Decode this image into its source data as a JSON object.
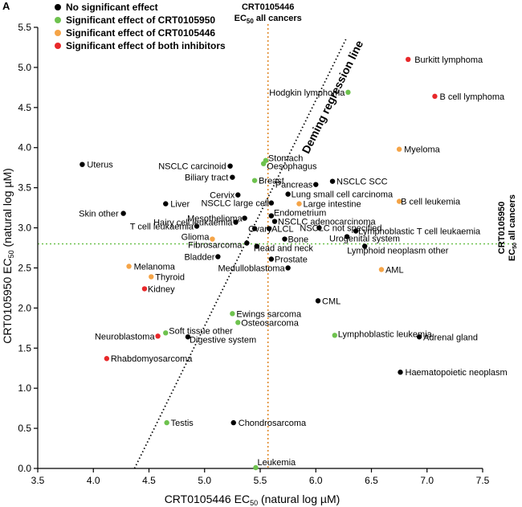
{
  "panel_label": "A",
  "chart_data": {
    "type": "scatter",
    "title": "",
    "xlabel": "CRT0105446 EC50 (natural log µM)",
    "ylabel": "CRT0105950 EC50 (natural log µM)",
    "xlim": [
      3.5,
      7.5
    ],
    "ylim": [
      0.0,
      5.5
    ],
    "xticks": [
      "3.5",
      "4.0",
      "4.5",
      "5.0",
      "5.5",
      "6.0",
      "6.5",
      "7.0",
      "7.5"
    ],
    "yticks": [
      "0.0",
      "0.5",
      "1.0",
      "1.5",
      "2.0",
      "2.5",
      "3.0",
      "3.5",
      "4.0",
      "4.5",
      "5.0",
      "5.5"
    ],
    "legend": {
      "position": "top-left",
      "entries": [
        {
          "key": "none",
          "label": "No significant effect",
          "color": "#000000"
        },
        {
          "key": "green",
          "label": "Significant effect of CRT0105950",
          "color": "#6ec24e"
        },
        {
          "key": "orange",
          "label": "Significant effect of CRT0105446",
          "color": "#f5a447"
        },
        {
          "key": "red",
          "label": "Significant effect of both inhibitors",
          "color": "#e8282a"
        }
      ]
    },
    "reference_lines": {
      "vertical": {
        "x": 5.57,
        "color": "#e08a2a",
        "line1": "CRT0105446",
        "line2_main": "EC",
        "line2_sub": "50",
        "line2_rest": " all cancers"
      },
      "horizontal": {
        "y": 2.8,
        "color": "#6ec24e",
        "line1": "CRT0105950",
        "line2_main": "EC",
        "line2_sub": "50",
        "line2_rest": " all cancers"
      }
    },
    "regression": {
      "label": "Deming regression line",
      "x1": 4.37,
      "y1": 0.0,
      "x2": 6.27,
      "y2": 5.35
    },
    "points": [
      {
        "name": "Burkitt lymphoma",
        "x": 6.83,
        "y": 5.1,
        "group": "red"
      },
      {
        "name": "B cell lymphoma",
        "x": 7.07,
        "y": 4.64,
        "group": "red"
      },
      {
        "name": "Hodgkin lymphoma",
        "x": 6.29,
        "y": 4.69,
        "group": "green"
      },
      {
        "name": "Myeloma",
        "x": 6.75,
        "y": 3.98,
        "group": "orange"
      },
      {
        "name": "Uterus",
        "x": 3.9,
        "y": 3.79,
        "group": "none"
      },
      {
        "name": "NSCLC carcinoid",
        "x": 5.23,
        "y": 3.77,
        "group": "none"
      },
      {
        "name": "Stomach",
        "x": 5.55,
        "y": 3.84,
        "group": "green"
      },
      {
        "name": "Oesophagus",
        "x": 5.53,
        "y": 3.8,
        "group": "green"
      },
      {
        "name": "Biliary tract",
        "x": 5.25,
        "y": 3.63,
        "group": "none"
      },
      {
        "name": "Breast",
        "x": 5.45,
        "y": 3.59,
        "group": "green"
      },
      {
        "name": "NSCLC SCC",
        "x": 6.15,
        "y": 3.58,
        "group": "none"
      },
      {
        "name": "Pancreas",
        "x": 6.0,
        "y": 3.54,
        "group": "none"
      },
      {
        "name": "Cervix",
        "x": 5.3,
        "y": 3.41,
        "group": "none"
      },
      {
        "name": "Lung small cell carcinoma",
        "x": 5.75,
        "y": 3.42,
        "group": "none"
      },
      {
        "name": "NSCLC large cell",
        "x": 5.6,
        "y": 3.31,
        "group": "none"
      },
      {
        "name": "Large intestine",
        "x": 5.85,
        "y": 3.3,
        "group": "orange"
      },
      {
        "name": "B cell leukemia",
        "x": 6.75,
        "y": 3.33,
        "group": "orange"
      },
      {
        "name": "Liver",
        "x": 4.65,
        "y": 3.3,
        "group": "none"
      },
      {
        "name": "Skin other",
        "x": 4.27,
        "y": 3.18,
        "group": "none"
      },
      {
        "name": "Mesothelioma",
        "x": 5.36,
        "y": 3.12,
        "group": "none"
      },
      {
        "name": "Endometrium",
        "x": 5.6,
        "y": 3.15,
        "group": "none"
      },
      {
        "name": "Hairy cell leukaemia",
        "x": 5.28,
        "y": 3.07,
        "group": "none"
      },
      {
        "name": "NSCLC adenocarcinoma",
        "x": 5.63,
        "y": 3.08,
        "group": "none"
      },
      {
        "name": "T cell leukaemia",
        "x": 4.93,
        "y": 3.02,
        "group": "none"
      },
      {
        "name": "Ovary",
        "x": 5.45,
        "y": 2.99,
        "group": "none"
      },
      {
        "name": "ALCL",
        "x": 5.58,
        "y": 2.99,
        "group": "none"
      },
      {
        "name": "NSCLC not specified",
        "x": 6.03,
        "y": 3.0,
        "group": "none"
      },
      {
        "name": "Lymphoblastic T cell leukaemia",
        "x": 6.36,
        "y": 2.96,
        "group": "none"
      },
      {
        "name": "Urogenital system",
        "x": 6.28,
        "y": 2.89,
        "group": "none"
      },
      {
        "name": "Glioma",
        "x": 5.07,
        "y": 2.86,
        "group": "orange"
      },
      {
        "name": "Bone",
        "x": 5.72,
        "y": 2.86,
        "group": "none"
      },
      {
        "name": "Fibrosarcoma",
        "x": 5.38,
        "y": 2.81,
        "group": "none"
      },
      {
        "name": "Head and neck",
        "x": 5.47,
        "y": 2.77,
        "group": "none"
      },
      {
        "name": "Lymphoid neoplasm other",
        "x": 6.44,
        "y": 2.77,
        "group": "none"
      },
      {
        "name": "Bladder",
        "x": 5.12,
        "y": 2.64,
        "group": "none"
      },
      {
        "name": "Prostate",
        "x": 5.6,
        "y": 2.61,
        "group": "none"
      },
      {
        "name": "Melanoma",
        "x": 4.32,
        "y": 2.52,
        "group": "orange"
      },
      {
        "name": "Medulloblastoma",
        "x": 5.75,
        "y": 2.5,
        "group": "none"
      },
      {
        "name": "AML",
        "x": 6.59,
        "y": 2.48,
        "group": "orange"
      },
      {
        "name": "Thyroid",
        "x": 4.52,
        "y": 2.39,
        "group": "orange"
      },
      {
        "name": "Kidney",
        "x": 4.46,
        "y": 2.24,
        "group": "red"
      },
      {
        "name": "CML",
        "x": 6.02,
        "y": 2.09,
        "group": "none"
      },
      {
        "name": "Ewings sarcoma",
        "x": 5.25,
        "y": 1.93,
        "group": "green"
      },
      {
        "name": "Osteosarcoma",
        "x": 5.3,
        "y": 1.82,
        "group": "green"
      },
      {
        "name": "Soft tissue other",
        "x": 4.65,
        "y": 1.69,
        "group": "green"
      },
      {
        "name": "Neuroblastoma",
        "x": 4.58,
        "y": 1.65,
        "group": "red"
      },
      {
        "name": "Digestive system",
        "x": 4.85,
        "y": 1.64,
        "group": "none"
      },
      {
        "name": "Lymphoblastic leukemia",
        "x": 6.17,
        "y": 1.66,
        "group": "green"
      },
      {
        "name": "Adrenal gland",
        "x": 6.93,
        "y": 1.64,
        "group": "none"
      },
      {
        "name": "Rhabdomyosarcoma",
        "x": 4.12,
        "y": 1.37,
        "group": "red"
      },
      {
        "name": "Haematopoietic neoplasm",
        "x": 6.76,
        "y": 1.2,
        "group": "none"
      },
      {
        "name": "Testis",
        "x": 4.66,
        "y": 0.57,
        "group": "green"
      },
      {
        "name": "Chondrosarcoma",
        "x": 5.26,
        "y": 0.57,
        "group": "none"
      },
      {
        "name": "Leukemia",
        "x": 5.46,
        "y": 0.01,
        "group": "green"
      }
    ]
  }
}
